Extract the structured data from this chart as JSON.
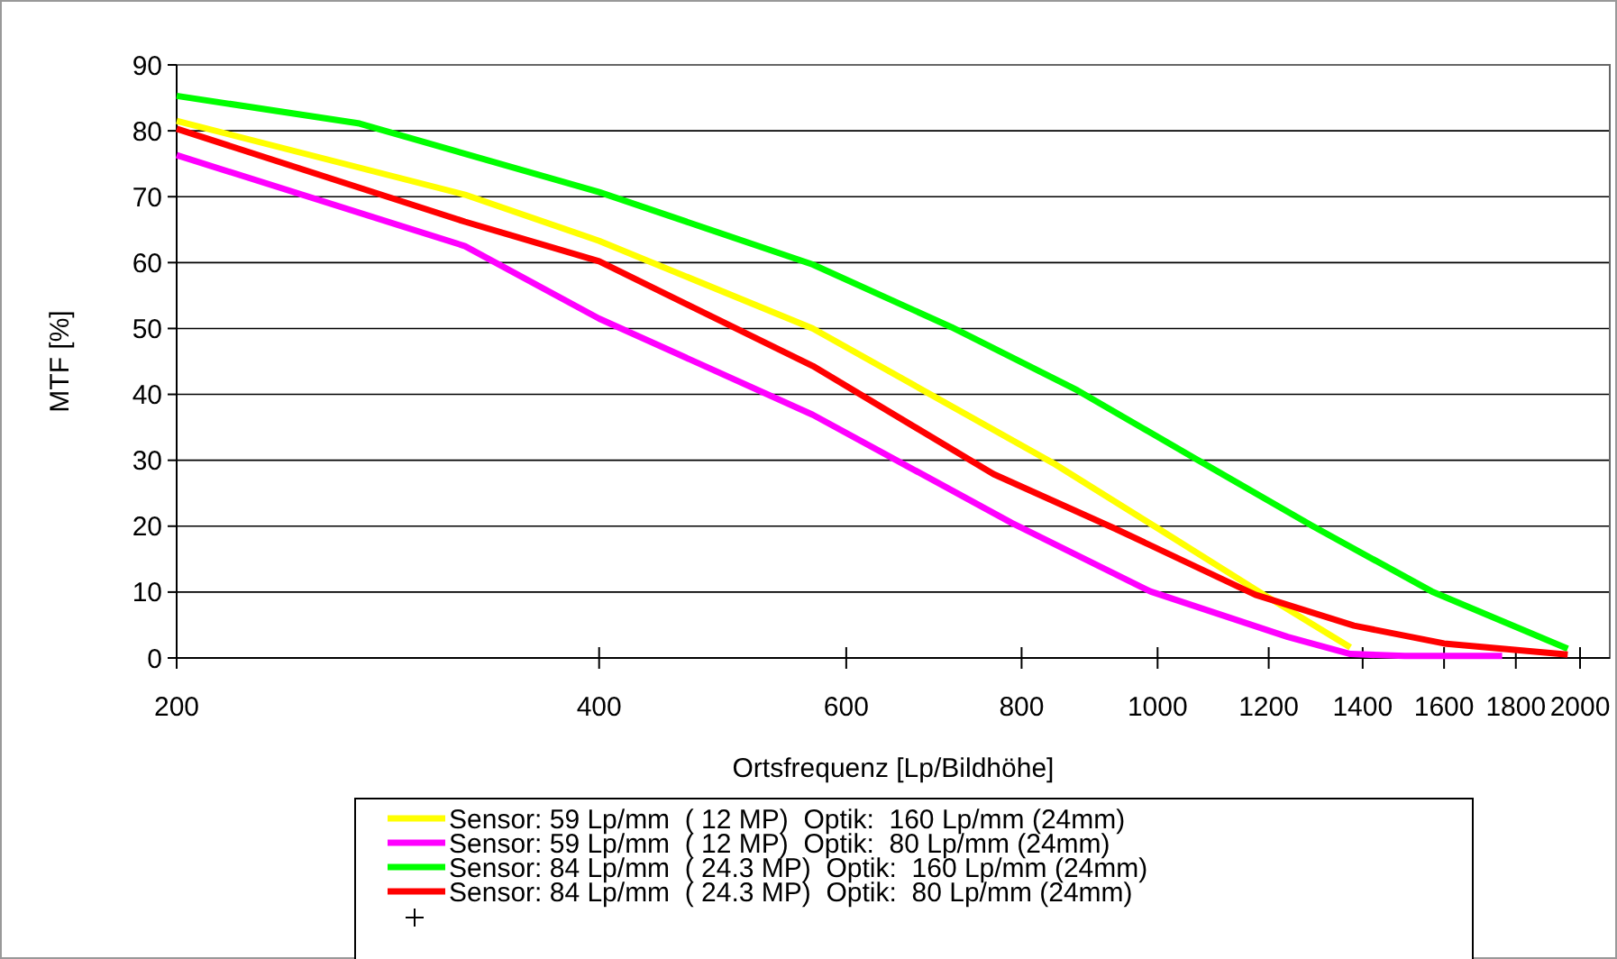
{
  "chart_data": {
    "type": "line",
    "xlabel": "Ortsfrequenz [Lp/Bildhöhe]",
    "ylabel": "MTF [%]",
    "log": "x",
    "xlim": [
      200,
      2100
    ],
    "xticks": [
      200,
      400,
      600,
      800,
      1000,
      1200,
      1400,
      1600,
      1800,
      2000
    ],
    "ylim": [
      0,
      90
    ],
    "yticks": [
      0,
      10,
      20,
      30,
      40,
      50,
      60,
      70,
      80,
      90
    ],
    "grid": "y",
    "legend": "bottom",
    "marker": "none",
    "line_style": "solid",
    "series": [
      {
        "name": "Sensor: 59 Lp/mm  ( 12 MP)  Optik:  160 Lp/mm (24mm)",
        "color": "#ffff00",
        "x": [
          200,
          321,
          400,
          568,
          842,
          1000,
          1180,
          1372
        ],
        "values": [
          81.5,
          70.3,
          63.3,
          50,
          29.6,
          19.7,
          10.1,
          1.6
        ]
      },
      {
        "name": "Sensor: 59 Lp/mm  ( 12 MP)  Optik:  80 Lp/mm (24mm)",
        "color": "#ff00ff",
        "x": [
          200,
          321,
          400,
          568,
          787,
          988,
          1238,
          1372,
          1500,
          1760
        ],
        "values": [
          76.3,
          62.5,
          51.5,
          36.9,
          20.5,
          10.1,
          3.2,
          0.6,
          0.3,
          0.3
        ]
      },
      {
        "name": "Sensor: 84 Lp/mm  ( 24.3 MP)  Optik:  160 Lp/mm (24mm)",
        "color": "#00ff00",
        "x": [
          200,
          270,
          400,
          568,
          713,
          877,
          1067,
          1290,
          1568,
          1960
        ],
        "values": [
          85.3,
          81.1,
          70.7,
          59.7,
          50.2,
          40.6,
          30.1,
          20,
          10.1,
          1.4
        ]
      },
      {
        "name": "Sensor: 84 Lp/mm  ( 24.3 MP)  Optik:  80 Lp/mm (24mm)",
        "color": "#ff0000",
        "x": [
          200,
          321,
          400,
          568,
          764,
          931,
          1174,
          1380,
          1600,
          1960
        ],
        "values": [
          80.3,
          66.2,
          60.2,
          44.3,
          27.9,
          19.7,
          9.6,
          4.9,
          2.2,
          0.5
        ]
      }
    ]
  }
}
